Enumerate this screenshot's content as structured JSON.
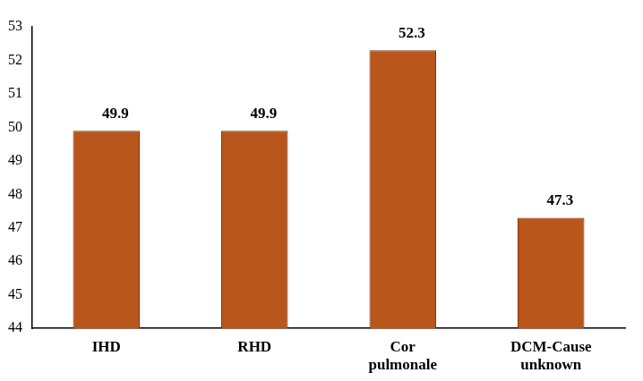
{
  "chart_data": {
    "type": "bar",
    "categories": [
      "IHD",
      "RHD",
      "Cor pulmonale",
      "DCM-Cause unknown"
    ],
    "values": [
      49.9,
      49.9,
      52.3,
      47.3
    ],
    "color": "#b9561b",
    "ylim": [
      44,
      53
    ],
    "yticks": [
      44,
      45,
      46,
      47,
      48,
      49,
      50,
      51,
      52,
      53
    ],
    "grid": false,
    "data_labels": true
  }
}
